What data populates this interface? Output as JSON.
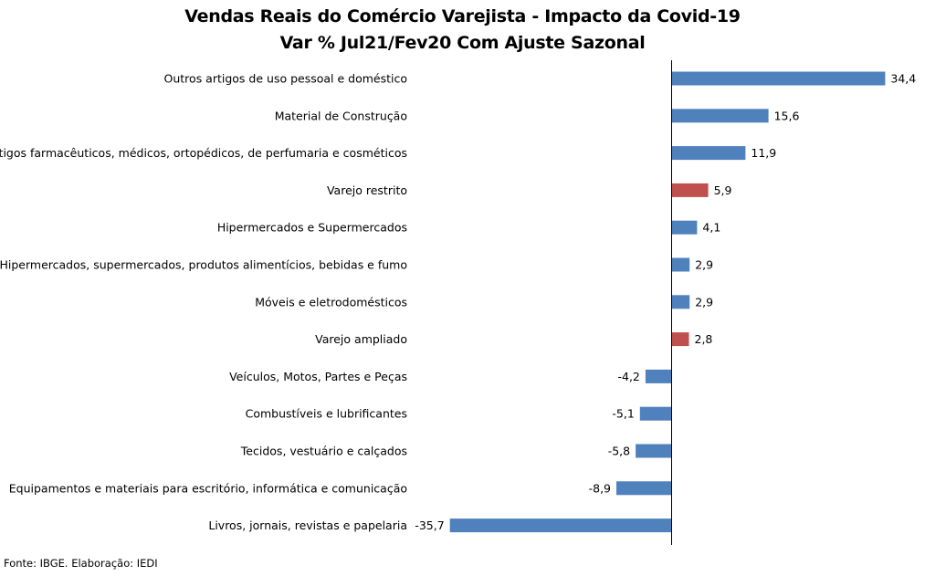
{
  "colors": {
    "default_bar": "#4F81BD",
    "highlight_bar": "#C0504D",
    "axis": "#000000"
  },
  "chart_data": {
    "type": "bar",
    "orientation": "horizontal",
    "title": "Vendas Reais do Comércio Varejista - Impacto da Covid-19",
    "subtitle": "Var % Jul21/Fev20 Com Ajuste Sazonal",
    "xlim": [
      -40,
      40
    ],
    "grid": false,
    "categories": [
      "Outros artigos de uso pessoal e doméstico",
      "Material de Construção",
      "Artigos farmacêuticos, médicos, ortopédicos, de perfumaria e cosméticos",
      "Varejo restrito",
      "Hipermercados e Supermercados",
      "Hipermercados, supermercados, produtos alimentícios, bebidas e fumo",
      "Móveis e eletrodomésticos",
      "Varejo ampliado",
      "Veículos, Motos, Partes e Peças",
      "Combustíveis e lubrificantes",
      "Tecidos, vestuário e calçados",
      "Equipamentos e materiais para escritório, informática e comunicação",
      "Livros, jornais, revistas e papelaria"
    ],
    "values": [
      34.4,
      15.6,
      11.9,
      5.9,
      4.1,
      2.9,
      2.9,
      2.8,
      -4.2,
      -5.1,
      -5.8,
      -8.9,
      -35.7
    ],
    "value_labels": [
      "34,4",
      "15,6",
      "11,9",
      "5,9",
      "4,1",
      "2,9",
      "2,9",
      "2,8",
      "-4,2",
      "-5,1",
      "-5,8",
      "-8,9",
      "-35,7"
    ],
    "highlighted": [
      "Varejo restrito",
      "Varejo ampliado"
    ]
  },
  "source": "Fonte: IBGE. Elaboração: IEDI"
}
